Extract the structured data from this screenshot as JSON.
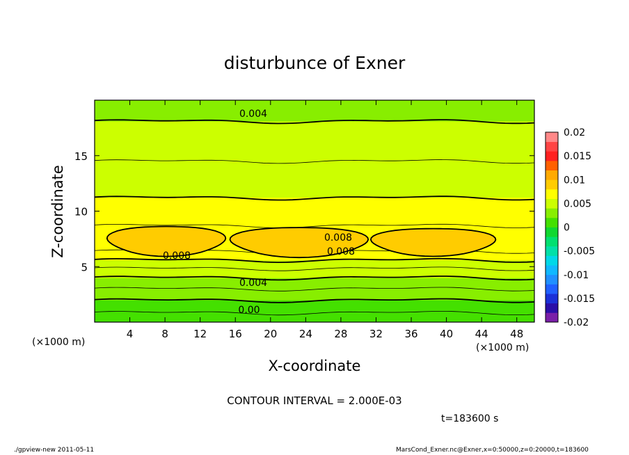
{
  "chart_data": {
    "type": "contour",
    "title": "disturbunce of Exner",
    "xlabel": "X-coordinate",
    "ylabel": "Z-coordinate",
    "x_unit_left": "(×1000 m)",
    "x_unit_right": "(×1000 m)",
    "xlim": [
      0,
      50
    ],
    "ylim": [
      0,
      20
    ],
    "xticks": [
      "4",
      "8",
      "12",
      "16",
      "20",
      "24",
      "28",
      "32",
      "36",
      "40",
      "44",
      "48"
    ],
    "xtick_values": [
      4,
      8,
      12,
      16,
      20,
      24,
      28,
      32,
      36,
      40,
      44,
      48
    ],
    "yticks": [
      "5",
      "10",
      "15"
    ],
    "ytick_values": [
      5,
      10,
      15
    ],
    "contour_interval_text": "CONTOUR INTERVAL = 2.000E-03",
    "time_text": "t=183600 s",
    "footer_left": "./gpview-new  2011-05-11",
    "footer_right": "MarsCond_Exner.nc@Exner,x=0:50000,z=0:20000,t=183600",
    "contour_labels": [
      "0.004",
      "0.008",
      "0.008",
      "0.008",
      "0.004",
      "0.00"
    ],
    "colorbar": {
      "ticks": [
        "0.02",
        "0.015",
        "0.01",
        "0.005",
        "0",
        "-0.005",
        "-0.01",
        "-0.015",
        "-0.02"
      ],
      "levels": [
        -0.02,
        -0.018,
        -0.016,
        -0.014,
        -0.012,
        -0.01,
        -0.008,
        -0.006,
        -0.004,
        -0.002,
        0,
        0.002,
        0.004,
        0.006,
        0.008,
        0.01,
        0.012,
        0.014,
        0.016,
        0.018,
        0.02
      ],
      "colors": [
        "#7a1fa8",
        "#2a0ea8",
        "#1b30d8",
        "#2060ff",
        "#2090ff",
        "#10b8ff",
        "#00d8e8",
        "#00e0a8",
        "#00e070",
        "#10d830",
        "#44e000",
        "#88ee00",
        "#ccff00",
        "#ffff00",
        "#ffcc00",
        "#ffaa00",
        "#ff6000",
        "#ff2020",
        "#ff4444",
        "#ff8888"
      ]
    },
    "bands_z_vs_value": [
      {
        "z": 0.0,
        "v": 0.0003
      },
      {
        "z": 1.2,
        "v": 0.0013
      },
      {
        "z": 2.4,
        "v": 0.0024
      },
      {
        "z": 3.4,
        "v": 0.0034
      },
      {
        "z": 4.3,
        "v": 0.0043
      },
      {
        "z": 5.2,
        "v": 0.0055
      },
      {
        "z": 6.2,
        "v": 0.0068
      },
      {
        "z": 7.2,
        "v": 0.0079
      },
      {
        "z": 8.5,
        "v": 0.0071
      },
      {
        "z": 10.0,
        "v": 0.0063
      },
      {
        "z": 12.0,
        "v": 0.0058
      },
      {
        "z": 13.0,
        "v": 0.0054
      },
      {
        "z": 16.0,
        "v": 0.0046
      },
      {
        "z": 19.5,
        "v": 0.0036
      },
      {
        "z": 20.0,
        "v": 0.0035
      }
    ]
  }
}
